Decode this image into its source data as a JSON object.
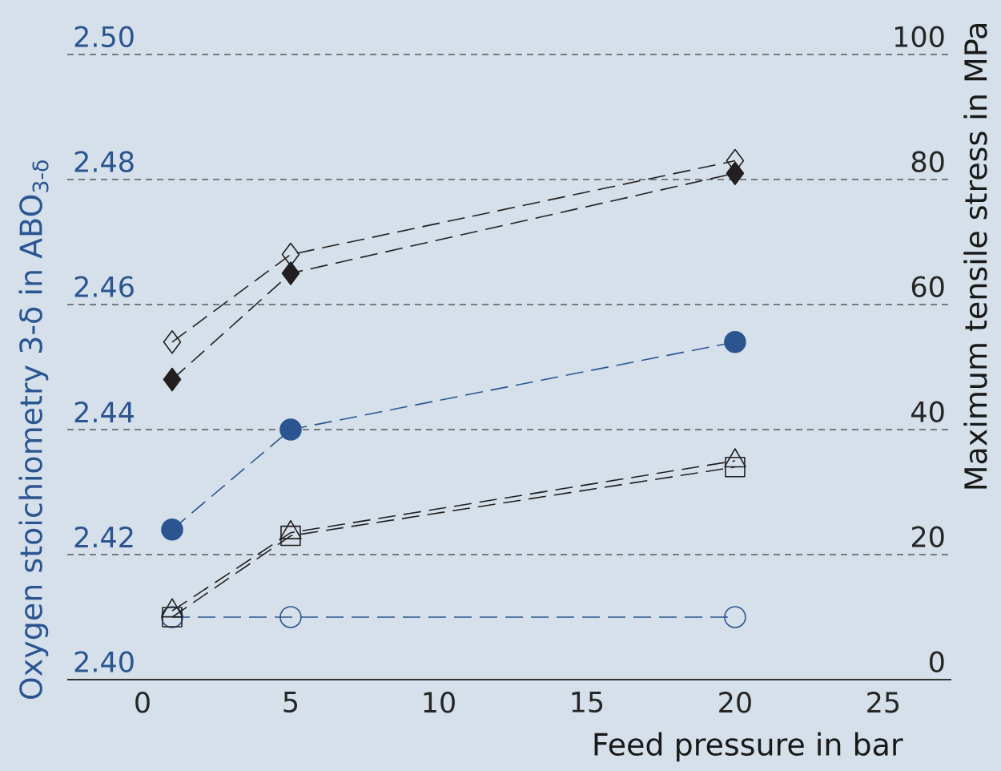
{
  "chart_data": {
    "type": "line",
    "xlabel": "Feed pressure in bar",
    "ylabel": "Oxygen stoichiometry 3-δ in ABO$_{3-δ}$",
    "y2label": "Maximum tensile stress in MPa",
    "x": [
      1,
      5,
      20
    ],
    "xlim": [
      -2.54,
      27.3
    ],
    "xticks": [
      0,
      5,
      10,
      15,
      20,
      25
    ],
    "ylim": [
      2.4,
      2.5
    ],
    "yticks": [
      {
        "value": 2.4,
        "label": "2.40"
      },
      {
        "value": 2.42,
        "label": "2.42"
      },
      {
        "value": 2.44,
        "label": "2.44"
      },
      {
        "value": 2.46,
        "label": "2.46"
      },
      {
        "value": 2.48,
        "label": "2.48"
      },
      {
        "value": 2.5,
        "label": "2.50"
      }
    ],
    "y2lim": [
      0,
      100
    ],
    "y2ticks": [
      0,
      20,
      40,
      60,
      80,
      100
    ],
    "grid": "y",
    "line_style": "dashed",
    "series": [
      {
        "color": "#2b5591",
        "marker": "circle filled",
        "values": [
          2.424,
          2.44,
          2.454
        ]
      },
      {
        "color": "#2b5591",
        "marker": "circle",
        "values": [
          2.41,
          2.41,
          2.41
        ]
      },
      {
        "color": "#231f20",
        "marker": "diamond",
        "axis": "y2",
        "values": [
          54,
          68,
          83
        ]
      },
      {
        "color": "#231f20",
        "marker": "diamond filled",
        "axis": "y2",
        "values": [
          48,
          65,
          81
        ]
      },
      {
        "color": "#231f20",
        "marker": "triangle",
        "axis": "y2",
        "values": [
          11,
          23.5,
          35
        ]
      },
      {
        "color": "#231f20",
        "marker": "square",
        "axis": "y2",
        "values": [
          10,
          23,
          34
        ]
      }
    ]
  }
}
